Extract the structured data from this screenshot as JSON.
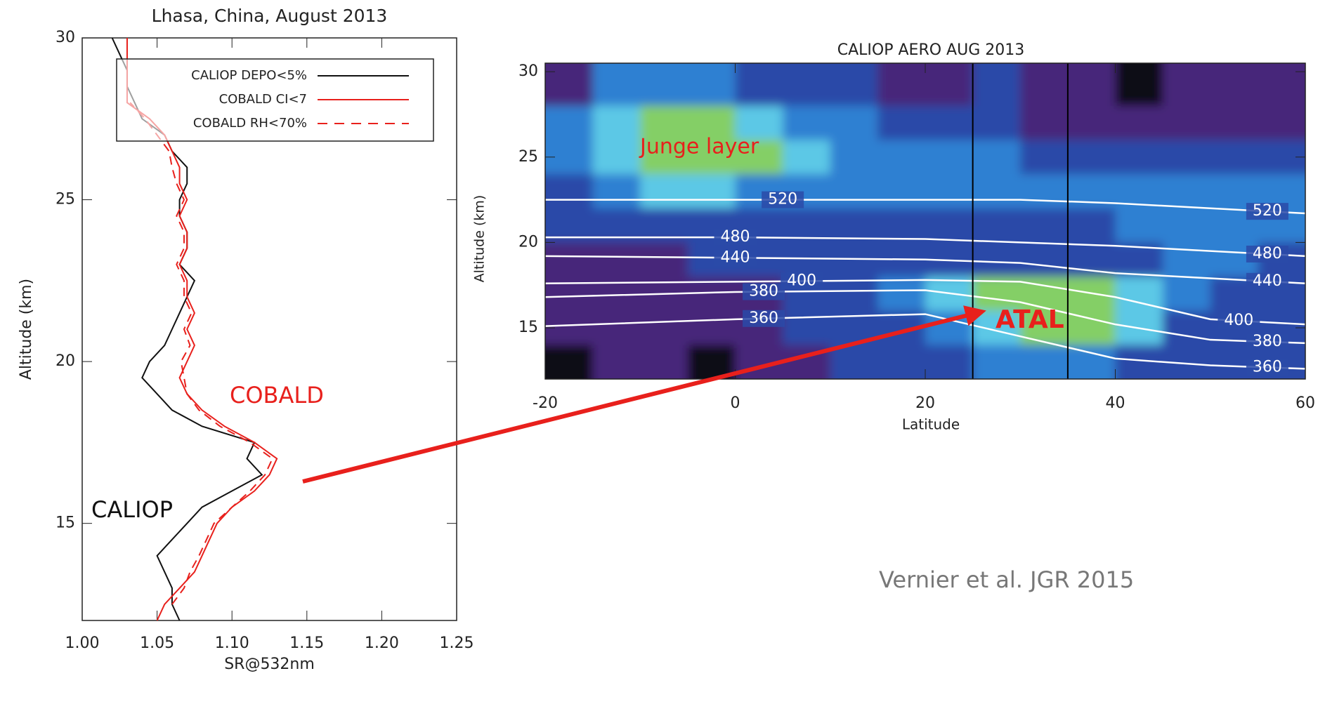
{
  "chart_data": [
    {
      "type": "profile",
      "title": "Lhasa, China, August 2013",
      "x_label": "SR@532nm",
      "y_label": "Altitude (km)",
      "xlim": [
        1.0,
        1.25
      ],
      "xticks": [
        {
          "value": 1.0,
          "label": "1.00"
        },
        1.05,
        {
          "value": 1.1,
          "label": "1.10"
        },
        1.15,
        {
          "value": 1.2,
          "label": "1.20"
        },
        1.25
      ],
      "ylim": [
        12,
        30
      ],
      "yticks": [
        15,
        20,
        25,
        30
      ],
      "y": [
        12,
        12.5,
        13,
        13.5,
        14,
        14.5,
        15,
        15.5,
        16,
        16.5,
        17,
        17.5,
        18,
        18.5,
        19,
        19.5,
        20,
        20.5,
        21,
        21.5,
        22,
        22.5,
        23,
        23.5,
        24,
        24.5,
        25,
        25.5,
        26,
        26.5,
        27,
        27.5,
        28,
        28.5,
        29,
        29.5,
        30
      ],
      "legend": "upper-right",
      "series": [
        {
          "name": "CALIOP DEPO<5%",
          "color": "#111111",
          "dash": false,
          "values": [
            1.065,
            1.06,
            1.06,
            1.055,
            1.05,
            1.06,
            1.07,
            1.08,
            1.1,
            1.12,
            1.11,
            1.115,
            1.08,
            1.06,
            1.05,
            1.04,
            1.045,
            1.055,
            1.06,
            1.065,
            1.07,
            1.075,
            1.065,
            1.07,
            1.07,
            1.065,
            1.065,
            1.07,
            1.07,
            1.06,
            1.055,
            1.04,
            1.035,
            1.03,
            1.03,
            1.025,
            1.02
          ]
        },
        {
          "name": "COBALD CI<7",
          "color": "#e8201c",
          "dash": false,
          "values": [
            1.05,
            1.055,
            1.065,
            1.075,
            1.08,
            1.085,
            1.09,
            1.1,
            1.115,
            1.125,
            1.13,
            1.115,
            1.095,
            1.08,
            1.07,
            1.065,
            1.07,
            1.075,
            1.07,
            1.075,
            1.07,
            1.07,
            1.065,
            1.07,
            1.07,
            1.065,
            1.07,
            1.065,
            1.065,
            1.06,
            1.055,
            1.045,
            1.03,
            1.03,
            1.03,
            1.03,
            1.03
          ]
        },
        {
          "name": "COBALD RH<70%",
          "color": "#e8201c",
          "dash": true,
          "values": [
            null,
            1.06,
            1.068,
            1.072,
            1.078,
            1.083,
            1.088,
            1.1,
            1.112,
            1.122,
            1.127,
            1.112,
            1.092,
            1.078,
            1.07,
            1.068,
            1.066,
            1.072,
            1.068,
            1.073,
            1.068,
            1.068,
            1.063,
            1.068,
            1.068,
            1.063,
            1.068,
            1.063,
            1.06,
            1.058,
            1.05,
            1.042,
            1.032,
            null,
            null,
            null,
            null
          ]
        }
      ],
      "annotations": [
        {
          "text": "COBALD",
          "color": "#e8201c"
        },
        {
          "text": "CALIOP",
          "color": "#111111"
        }
      ]
    },
    {
      "type": "contour-map",
      "title": "CALIOP AERO AUG 2013",
      "x_label": "Latitude",
      "y_label": "Altitude (km)",
      "xlim": [
        -20,
        60
      ],
      "xticks": [
        -20,
        0,
        20,
        40,
        60
      ],
      "ylim": [
        12,
        30.5
      ],
      "yticks": [
        15,
        20,
        25,
        30
      ],
      "colors": [
        "#0a0818",
        "#46287a",
        "#2a4aa8",
        "#2f80d2",
        "#5cc8e6",
        "#84cf66"
      ],
      "field": {
        "x": [
          -17.5,
          -12.5,
          -7.5,
          -2.5,
          2.5,
          7.5,
          12.5,
          17.5,
          22.5,
          27.5,
          32.5,
          37.5,
          42.5,
          47.5,
          52.5,
          57.5
        ],
        "y": [
          29,
          27,
          25,
          23,
          21,
          19,
          17,
          15,
          13
        ],
        "values": [
          [
            1,
            3,
            3,
            3,
            2,
            2,
            2,
            1,
            1,
            2,
            1,
            1,
            0,
            1,
            1,
            1
          ],
          [
            3,
            4,
            5,
            5,
            4,
            3,
            3,
            2,
            2,
            2,
            1,
            1,
            1,
            1,
            1,
            1
          ],
          [
            3,
            4,
            5,
            5,
            5,
            4,
            3,
            3,
            3,
            3,
            2,
            2,
            2,
            2,
            2,
            2
          ],
          [
            2,
            3,
            4,
            4,
            3,
            3,
            3,
            3,
            3,
            3,
            3,
            3,
            3,
            3,
            3,
            3
          ],
          [
            2,
            2,
            2,
            2,
            2,
            2,
            2,
            2,
            2,
            2,
            2,
            2,
            3,
            3,
            3,
            3
          ],
          [
            1,
            1,
            1,
            2,
            2,
            2,
            2,
            2,
            2,
            2,
            2,
            2,
            2,
            3,
            3,
            2
          ],
          [
            1,
            1,
            1,
            1,
            1,
            2,
            2,
            3,
            4,
            5,
            5,
            5,
            4,
            3,
            2,
            2
          ],
          [
            1,
            1,
            1,
            1,
            1,
            2,
            2,
            2,
            3,
            4,
            5,
            5,
            4,
            2,
            2,
            2
          ],
          [
            0,
            1,
            1,
            0,
            1,
            1,
            2,
            2,
            2,
            3,
            3,
            3,
            2,
            2,
            2,
            2
          ]
        ]
      },
      "contour_x": [
        -20,
        0,
        20,
        30,
        40,
        50,
        60
      ],
      "contours": [
        {
          "level": 520,
          "values": [
            22.5,
            22.5,
            22.5,
            22.5,
            22.3,
            22.0,
            21.7
          ]
        },
        {
          "level": 480,
          "values": [
            20.3,
            20.3,
            20.2,
            20.0,
            19.8,
            19.5,
            19.2
          ]
        },
        {
          "level": 440,
          "values": [
            19.2,
            19.1,
            19.0,
            18.8,
            18.2,
            17.9,
            17.6
          ]
        },
        {
          "level": 400,
          "values": [
            17.6,
            17.7,
            17.8,
            17.7,
            16.8,
            15.5,
            15.2
          ]
        },
        {
          "level": 380,
          "values": [
            16.8,
            17.1,
            17.2,
            16.5,
            15.2,
            14.3,
            14.1
          ]
        },
        {
          "level": 360,
          "values": [
            15.1,
            15.5,
            15.8,
            14.5,
            13.2,
            12.8,
            12.6
          ]
        }
      ],
      "vlines": [
        25,
        35
      ],
      "annotations": [
        {
          "text": "Junge layer",
          "color": "#e8201c"
        },
        {
          "text": "ATAL",
          "color": "#e8201c"
        }
      ]
    }
  ],
  "credit": "Vernier et al. JGR 2015"
}
